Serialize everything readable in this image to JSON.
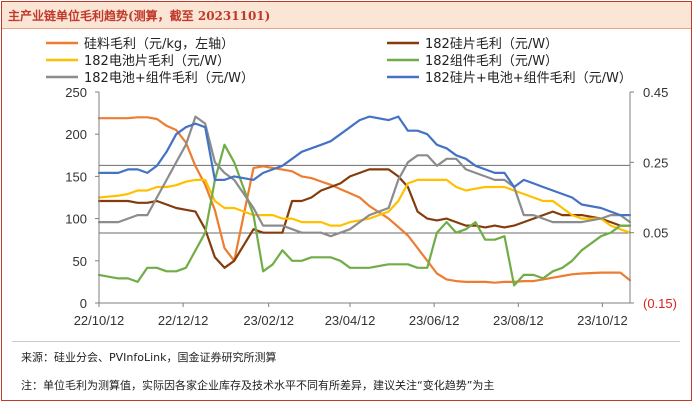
{
  "header": {
    "title": "主产业链单位毛利趋势(测算，截至 20231101)"
  },
  "footer": {
    "source": "来源：硅业分会、PVInfoLink，国金证券研究所测算",
    "note": "注：单位毛利为测算值，实际因各家企业库存及技术水平不同有所差异，建议关注“变化趋势”为主"
  },
  "colors": {
    "silicon": "#ed7d31",
    "wafer": "#843c0c",
    "cell": "#ffc000",
    "module": "#70ad47",
    "cell_module": "#8c8c8c",
    "total": "#4472c4",
    "frame": "#c0392b",
    "title_bg": "#fbe6d6"
  },
  "chart_data": {
    "type": "line",
    "x": [
      "2022-10-12",
      "2022-10-26",
      "2022-11-02",
      "2022-11-09",
      "2022-11-16",
      "2022-11-23",
      "2022-11-30",
      "2022-12-07",
      "2022-12-14",
      "2022-12-21",
      "2022-12-28",
      "2023-01-04",
      "2023-01-11",
      "2023-01-18",
      "2023-02-01",
      "2023-02-08",
      "2023-02-15",
      "2023-02-22",
      "2023-03-01",
      "2023-03-08",
      "2023-03-15",
      "2023-03-22",
      "2023-03-29",
      "2023-04-05",
      "2023-04-12",
      "2023-04-19",
      "2023-04-26",
      "2023-05-10",
      "2023-05-17",
      "2023-05-24",
      "2023-05-31",
      "2023-06-07",
      "2023-06-14",
      "2023-06-21",
      "2023-06-28",
      "2023-07-05",
      "2023-07-12",
      "2023-07-19",
      "2023-07-26",
      "2023-08-02",
      "2023-08-09",
      "2023-08-16",
      "2023-08-23",
      "2023-08-30",
      "2023-09-06",
      "2023-09-13",
      "2023-09-20",
      "2023-09-27",
      "2023-10-11",
      "2023-10-18",
      "2023-10-25",
      "2023-11-01"
    ],
    "x_ticks": [
      "22/10/12",
      "22/12/12",
      "23/02/12",
      "23/04/12",
      "23/06/12",
      "23/08/12",
      "23/10/12"
    ],
    "y_left": {
      "min": 0,
      "max": 250,
      "ticks": [
        "0",
        "50",
        "100",
        "150",
        "200",
        "250"
      ]
    },
    "y_right": {
      "min": -0.15,
      "max": 0.45,
      "ticks": [
        "(0.15)",
        "0.05",
        "0.25",
        "0.45"
      ]
    },
    "ref_lines_left": [
      163,
      83
    ],
    "ref_lines_right": [
      -0.15
    ],
    "legend": [
      "硅料毛利（元/kg，左轴）",
      "182硅片毛利（元/W）",
      "182电池片毛利（元/W）",
      "182组件毛利（元/W）",
      "182电池+组件毛利（元/W）",
      "182硅片+电池+组件毛利（元/W）"
    ],
    "series": [
      {
        "name": "硅料毛利（元/kg，左轴）",
        "axis": "left",
        "color_key": "silicon",
        "values": [
          219,
          219,
          219,
          220,
          220,
          218,
          210,
          205,
          190,
          162,
          140,
          110,
          65,
          50,
          160,
          162,
          160,
          158,
          156,
          150,
          148,
          144,
          140,
          135,
          130,
          125,
          115,
          100,
          90,
          80,
          65,
          50,
          35,
          28,
          26,
          25,
          25,
          25,
          24,
          25,
          25,
          26,
          26,
          28,
          30,
          32,
          34,
          35,
          36,
          36,
          36,
          27
        ]
      },
      {
        "name": "182硅片毛利（元/W）",
        "axis": "right",
        "color_key": "wafer",
        "values": [
          0.14,
          0.14,
          0.14,
          0.135,
          0.135,
          0.14,
          0.13,
          0.12,
          0.115,
          0.11,
          0.06,
          -0.02,
          -0.05,
          -0.03,
          0.06,
          0.05,
          0.05,
          0.05,
          0.14,
          0.14,
          0.15,
          0.17,
          0.18,
          0.19,
          0.21,
          0.22,
          0.23,
          0.23,
          0.21,
          0.18,
          0.11,
          0.09,
          0.085,
          0.09,
          0.08,
          0.07,
          0.07,
          0.065,
          0.07,
          0.065,
          0.07,
          0.08,
          0.09,
          0.1,
          0.11,
          0.1,
          0.1,
          0.1,
          0.09,
          0.08,
          0.07,
          0.07
        ]
      },
      {
        "name": "182电池片毛利（元/W）",
        "axis": "right",
        "color_key": "cell",
        "values": [
          0.15,
          0.155,
          0.16,
          0.17,
          0.17,
          0.18,
          0.18,
          0.185,
          0.195,
          0.2,
          0.2,
          0.14,
          0.12,
          0.12,
          0.1,
          0.1,
          0.1,
          0.09,
          0.09,
          0.08,
          0.08,
          0.08,
          0.07,
          0.07,
          0.08,
          0.085,
          0.09,
          0.11,
          0.14,
          0.19,
          0.2,
          0.2,
          0.2,
          0.2,
          0.18,
          0.17,
          0.175,
          0.18,
          0.18,
          0.18,
          0.17,
          0.16,
          0.15,
          0.14,
          0.14,
          0.12,
          0.1,
          0.09,
          0.09,
          0.07,
          0.06,
          0.05
        ]
      },
      {
        "name": "182组件毛利（元/W）",
        "axis": "right",
        "color_key": "module",
        "values": [
          -0.07,
          -0.08,
          -0.08,
          -0.09,
          -0.05,
          -0.05,
          -0.06,
          -0.06,
          -0.05,
          0.0,
          0.05,
          0.2,
          0.3,
          0.25,
          0.1,
          -0.06,
          -0.04,
          0.0,
          -0.03,
          -0.03,
          -0.02,
          -0.02,
          -0.02,
          -0.03,
          -0.05,
          -0.05,
          -0.05,
          -0.04,
          -0.04,
          -0.04,
          -0.05,
          -0.05,
          0.05,
          0.08,
          0.05,
          0.06,
          0.08,
          0.03,
          0.03,
          0.04,
          -0.1,
          -0.07,
          -0.07,
          -0.08,
          -0.06,
          -0.05,
          -0.03,
          0.0,
          0.04,
          0.05,
          0.07,
          0.07
        ]
      },
      {
        "name": "182电池+组件毛利（元/W）",
        "axis": "right",
        "color_key": "cell_module",
        "values": [
          0.08,
          0.08,
          0.09,
          0.1,
          0.1,
          0.15,
          0.2,
          0.25,
          0.3,
          0.38,
          0.36,
          0.25,
          0.22,
          0.2,
          0.12,
          0.07,
          0.07,
          0.07,
          0.06,
          0.05,
          0.05,
          0.05,
          0.04,
          0.05,
          0.06,
          0.08,
          0.1,
          0.12,
          0.2,
          0.25,
          0.27,
          0.27,
          0.24,
          0.26,
          0.26,
          0.23,
          0.22,
          0.21,
          0.2,
          0.2,
          0.18,
          0.1,
          0.1,
          0.09,
          0.08,
          0.08,
          0.08,
          0.08,
          0.09,
          0.1,
          0.1,
          0.08
        ]
      },
      {
        "name": "182硅片+电池+组件毛利（元/W）",
        "axis": "right",
        "color_key": "total",
        "values": [
          0.22,
          0.22,
          0.23,
          0.23,
          0.22,
          0.24,
          0.28,
          0.33,
          0.35,
          0.36,
          0.35,
          0.2,
          0.2,
          0.21,
          0.2,
          0.22,
          0.23,
          0.24,
          0.26,
          0.28,
          0.29,
          0.3,
          0.31,
          0.33,
          0.35,
          0.37,
          0.38,
          0.37,
          0.38,
          0.34,
          0.34,
          0.33,
          0.3,
          0.29,
          0.27,
          0.26,
          0.24,
          0.23,
          0.22,
          0.22,
          0.18,
          0.2,
          0.19,
          0.18,
          0.17,
          0.16,
          0.15,
          0.13,
          0.12,
          0.11,
          0.1,
          0.1
        ]
      }
    ]
  }
}
